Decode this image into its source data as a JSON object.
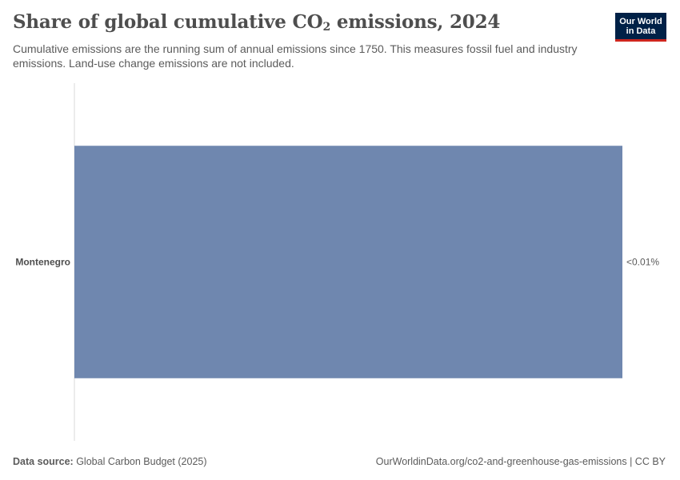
{
  "header": {
    "title_main": "Share of global cumulative CO",
    "title_sub": "2",
    "title_rest": " emissions, 2024",
    "subtitle": "Cumulative emissions are the running sum of annual emissions since 1750. This measures fossil fuel and industry emissions. Land-use change emissions are not included."
  },
  "logo": {
    "line1": "Our World",
    "line2": "in Data"
  },
  "chart_data": {
    "type": "bar",
    "orientation": "horizontal",
    "title": "Share of global cumulative CO₂ emissions, 2024",
    "categories": [
      "Montenegro"
    ],
    "values": [
      0.003
    ],
    "value_labels": [
      "<0.01%"
    ],
    "unit": "%",
    "bar_color": "#6f87af",
    "grid": false
  },
  "footer": {
    "source_label": "Data source:",
    "source_value": " Global Carbon Budget (2025)",
    "url_license": "OurWorldinData.org/co2-and-greenhouse-gas-emissions | CC BY"
  }
}
